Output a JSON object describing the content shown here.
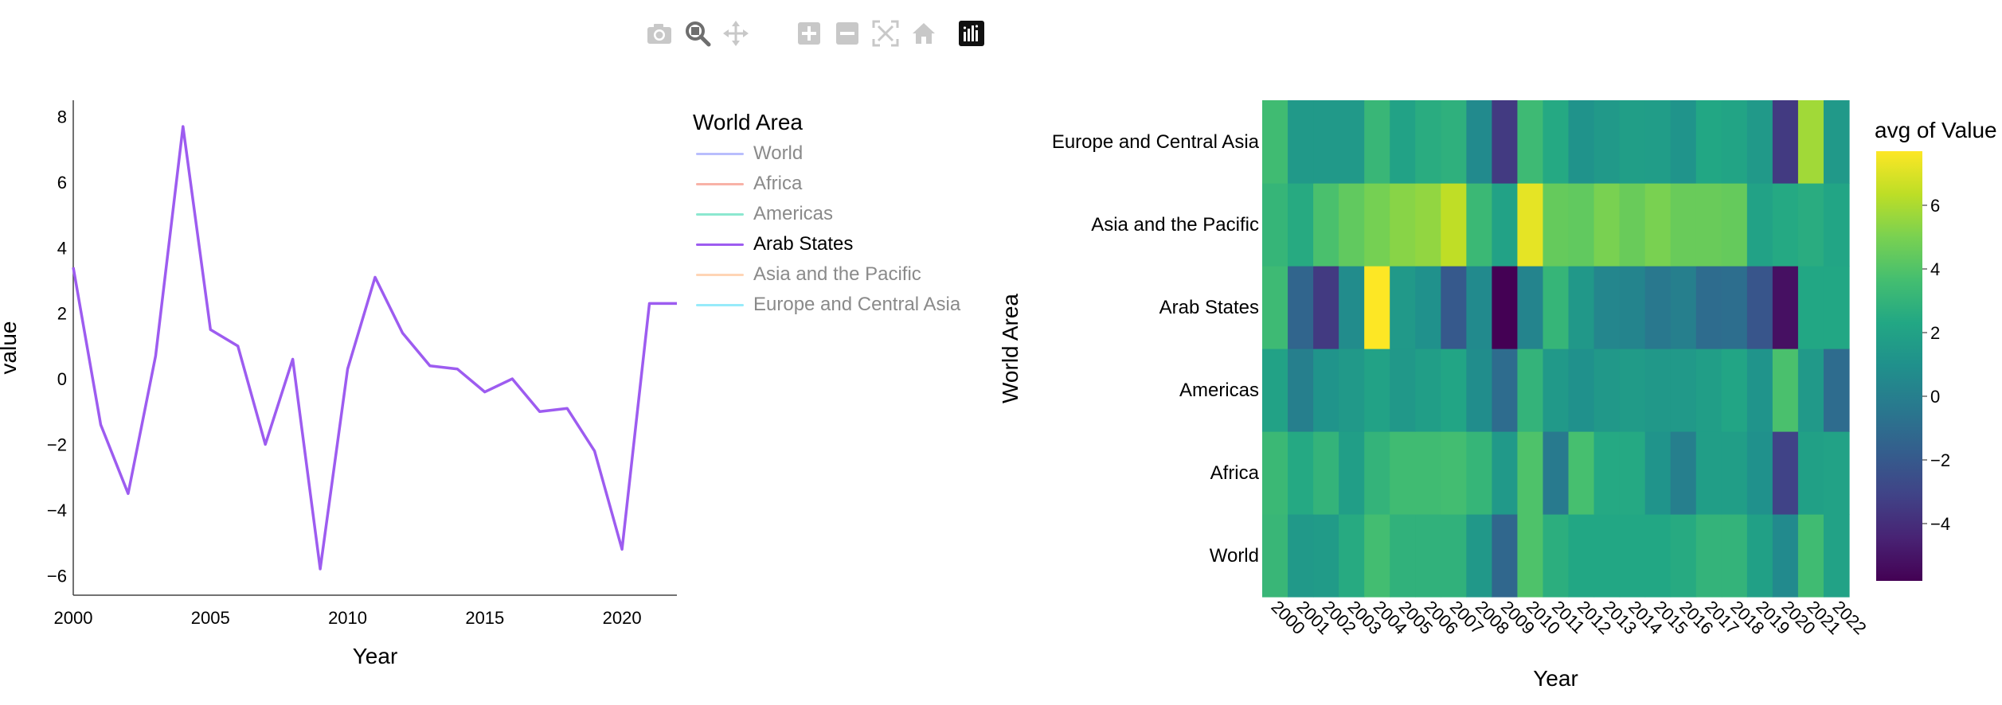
{
  "toolbar": {
    "buttons": [
      {
        "icon": "camera-icon",
        "title": "Download plot as a png"
      },
      {
        "icon": "zoom-icon",
        "title": "Zoom",
        "active": true
      },
      {
        "icon": "pan-icon",
        "title": "Pan"
      },
      {
        "icon": "zoom-in-icon",
        "title": "Zoom in"
      },
      {
        "icon": "zoom-out-icon",
        "title": "Zoom out"
      },
      {
        "icon": "autoscale-icon",
        "title": "Autoscale"
      },
      {
        "icon": "home-icon",
        "title": "Reset axes"
      },
      {
        "icon": "plotly-logo-icon",
        "title": "Produced with Plotly"
      }
    ]
  },
  "chart_data": [
    {
      "type": "line",
      "xlabel": "Year",
      "ylabel": "value",
      "xlim": [
        2000,
        2022
      ],
      "ylim": [
        -6.6,
        8.5
      ],
      "x_ticks": [
        "2000",
        "2005",
        "2010",
        "2015",
        "2020"
      ],
      "y_ticks": [
        "8",
        "6",
        "4",
        "2",
        "0",
        "−2",
        "−4",
        "−6"
      ],
      "legend": {
        "title": "World Area",
        "placement": "right",
        "entries": [
          {
            "name": "World",
            "color": "#636efa",
            "active": false
          },
          {
            "name": "Africa",
            "color": "#ef553b",
            "active": false
          },
          {
            "name": "Americas",
            "color": "#00cc96",
            "active": false
          },
          {
            "name": "Arab States",
            "color": "#9d5cf0",
            "active": true
          },
          {
            "name": "Asia and the Pacific",
            "color": "#ffa15a",
            "active": false
          },
          {
            "name": "Europe and Central Asia",
            "color": "#19d3f3",
            "active": false
          }
        ]
      },
      "series": [
        {
          "name": "Arab States",
          "color": "#9d5cf0",
          "x": [
            2000,
            2001,
            2002,
            2003,
            2004,
            2005,
            2006,
            2007,
            2008,
            2009,
            2010,
            2011,
            2012,
            2013,
            2014,
            2015,
            2016,
            2017,
            2018,
            2019,
            2020,
            2021,
            2022
          ],
          "y": [
            3.4,
            -1.4,
            -3.5,
            0.7,
            7.7,
            1.5,
            1.0,
            -2.0,
            0.6,
            -5.8,
            0.3,
            3.1,
            1.4,
            0.4,
            0.3,
            -0.4,
            0.0,
            -1.0,
            -0.9,
            -2.2,
            -5.2,
            2.3,
            2.3
          ]
        }
      ]
    },
    {
      "type": "heatmap",
      "xlabel": "Year",
      "ylabel": "World Area",
      "colorbar_title": "avg of Value",
      "colorscale": "viridis",
      "zmin": -5.8,
      "zmax": 7.7,
      "colorbar_ticks": [
        "6",
        "4",
        "2",
        "0",
        "−2",
        "−4"
      ],
      "x": [
        "2000",
        "2001",
        "2002",
        "2003",
        "2004",
        "2005",
        "2006",
        "2007",
        "2008",
        "2009",
        "2010",
        "2011",
        "2012",
        "2013",
        "2014",
        "2015",
        "2016",
        "2017",
        "2018",
        "2019",
        "2020",
        "2021",
        "2022"
      ],
      "y": [
        "World",
        "Africa",
        "Americas",
        "Arab States",
        "Asia and the Pacific",
        "Europe and Central Asia"
      ],
      "z": [
        [
          3.2,
          1.5,
          1.6,
          2.5,
          3.6,
          2.9,
          2.9,
          2.9,
          1.4,
          -1.3,
          3.9,
          2.7,
          2.3,
          2.3,
          2.3,
          2.3,
          2.5,
          3.0,
          3.0,
          1.9,
          0.6,
          3.5,
          2.0
        ],
        [
          3.3,
          2.4,
          3.0,
          1.8,
          3.0,
          3.5,
          3.5,
          3.6,
          3.1,
          1.5,
          3.9,
          -0.3,
          3.7,
          2.4,
          2.4,
          1.2,
          0.0,
          1.8,
          1.8,
          1.0,
          -3.1,
          1.9,
          2.0
        ],
        [
          2.0,
          0.0,
          1.2,
          1.5,
          2.0,
          1.4,
          1.8,
          2.2,
          0.8,
          -1.0,
          3.0,
          1.5,
          1.0,
          1.4,
          1.6,
          1.4,
          1.5,
          1.8,
          2.2,
          1.2,
          3.8,
          1.5,
          -1.0
        ],
        [
          3.4,
          -1.4,
          -3.5,
          0.7,
          7.7,
          1.5,
          1.0,
          -2.0,
          0.6,
          -5.8,
          0.3,
          3.1,
          1.4,
          0.4,
          0.3,
          -0.4,
          0.0,
          -1.0,
          -0.9,
          -2.2,
          -5.2,
          2.3,
          2.3
        ],
        [
          3.1,
          2.5,
          3.8,
          4.4,
          4.9,
          5.3,
          5.5,
          6.4,
          3.3,
          2.0,
          7.2,
          4.5,
          4.4,
          5.0,
          4.6,
          5.0,
          4.6,
          4.6,
          4.5,
          2.0,
          2.4,
          2.6,
          2.2
        ],
        [
          3.5,
          1.5,
          1.5,
          1.5,
          3.2,
          2.0,
          2.6,
          2.8,
          0.6,
          -3.5,
          3.4,
          2.4,
          1.1,
          1.5,
          1.8,
          1.7,
          1.2,
          2.3,
          2.1,
          1.5,
          -3.5,
          5.8,
          1.5
        ]
      ]
    }
  ]
}
